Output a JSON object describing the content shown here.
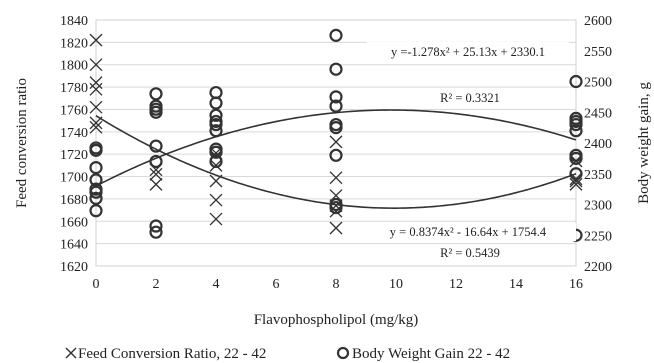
{
  "chart_data": {
    "type": "scatter",
    "xlabel": "Flavophospholipol (mg/kg)",
    "ylabel_left": "Feed conversion ratio",
    "ylabel_right": "Body weight gain, g",
    "x_ticks": [
      "0",
      "2",
      "4",
      "6",
      "8",
      "10",
      "12",
      "14",
      "16"
    ],
    "y_left_ticks": [
      "1620",
      "1640",
      "1660",
      "1680",
      "1700",
      "1720",
      "1740",
      "1760",
      "1780",
      "1800",
      "1820",
      "1840"
    ],
    "y_right_ticks": [
      "2200",
      "2250",
      "2300",
      "2350",
      "2400",
      "2450",
      "2500",
      "2550",
      "2600"
    ],
    "xlim": [
      0,
      16
    ],
    "ylim_left": [
      1620,
      1840
    ],
    "ylim_right": [
      2200,
      2600
    ],
    "grid": "horizontal",
    "series": [
      {
        "name": "Feed Conversion Ratio, 22 - 42",
        "marker": "x",
        "axis": "left",
        "color": "#333333",
        "points": [
          [
            0,
            1822
          ],
          [
            0,
            1800
          ],
          [
            0,
            1784
          ],
          [
            0,
            1778
          ],
          [
            0,
            1762
          ],
          [
            0,
            1748
          ],
          [
            0,
            1744
          ],
          [
            2,
            1706
          ],
          [
            2,
            1702
          ],
          [
            2,
            1693
          ],
          [
            4,
            1721
          ],
          [
            4,
            1710
          ],
          [
            4,
            1696
          ],
          [
            4,
            1679
          ],
          [
            4,
            1662
          ],
          [
            8,
            1731
          ],
          [
            8,
            1699
          ],
          [
            8,
            1683
          ],
          [
            8,
            1674
          ],
          [
            8,
            1669
          ],
          [
            8,
            1654
          ],
          [
            16,
            1714
          ],
          [
            16,
            1698
          ],
          [
            16,
            1696
          ],
          [
            16,
            1693
          ]
        ],
        "trendline": {
          "equation": "y = 0.8374x² - 16.64x + 1754.4",
          "r2": "R² = 0.5439",
          "coefficients": [
            0.8374,
            -16.64,
            1754.4
          ]
        }
      },
      {
        "name": "Body Weight Gain  22 - 42",
        "marker": "o",
        "axis": "right",
        "color": "#333333",
        "points": [
          [
            0,
            2392
          ],
          [
            0,
            2388
          ],
          [
            0,
            2360
          ],
          [
            0,
            2340
          ],
          [
            0,
            2325
          ],
          [
            0,
            2320
          ],
          [
            0,
            2310
          ],
          [
            0,
            2290
          ],
          [
            2,
            2480
          ],
          [
            2,
            2460
          ],
          [
            2,
            2455
          ],
          [
            2,
            2450
          ],
          [
            2,
            2395
          ],
          [
            2,
            2370
          ],
          [
            2,
            2265
          ],
          [
            2,
            2255
          ],
          [
            4,
            2482
          ],
          [
            4,
            2465
          ],
          [
            4,
            2445
          ],
          [
            4,
            2435
          ],
          [
            4,
            2430
          ],
          [
            4,
            2420
          ],
          [
            4,
            2390
          ],
          [
            4,
            2385
          ],
          [
            4,
            2370
          ],
          [
            8,
            2575
          ],
          [
            8,
            2520
          ],
          [
            8,
            2475
          ],
          [
            8,
            2460
          ],
          [
            8,
            2430
          ],
          [
            8,
            2425
          ],
          [
            8,
            2380
          ],
          [
            8,
            2300
          ],
          [
            8,
            2295
          ],
          [
            16,
            2500
          ],
          [
            16,
            2440
          ],
          [
            16,
            2435
          ],
          [
            16,
            2430
          ],
          [
            16,
            2420
          ],
          [
            16,
            2380
          ],
          [
            16,
            2375
          ],
          [
            16,
            2350
          ],
          [
            16,
            2250
          ]
        ],
        "trendline": {
          "equation": "y =-1.278x² + 25.13x + 2330.1",
          "r2": "R² = 0.3321",
          "coefficients": [
            -1.278,
            25.13,
            2330.1
          ]
        }
      }
    ],
    "legend_position": "bottom"
  }
}
